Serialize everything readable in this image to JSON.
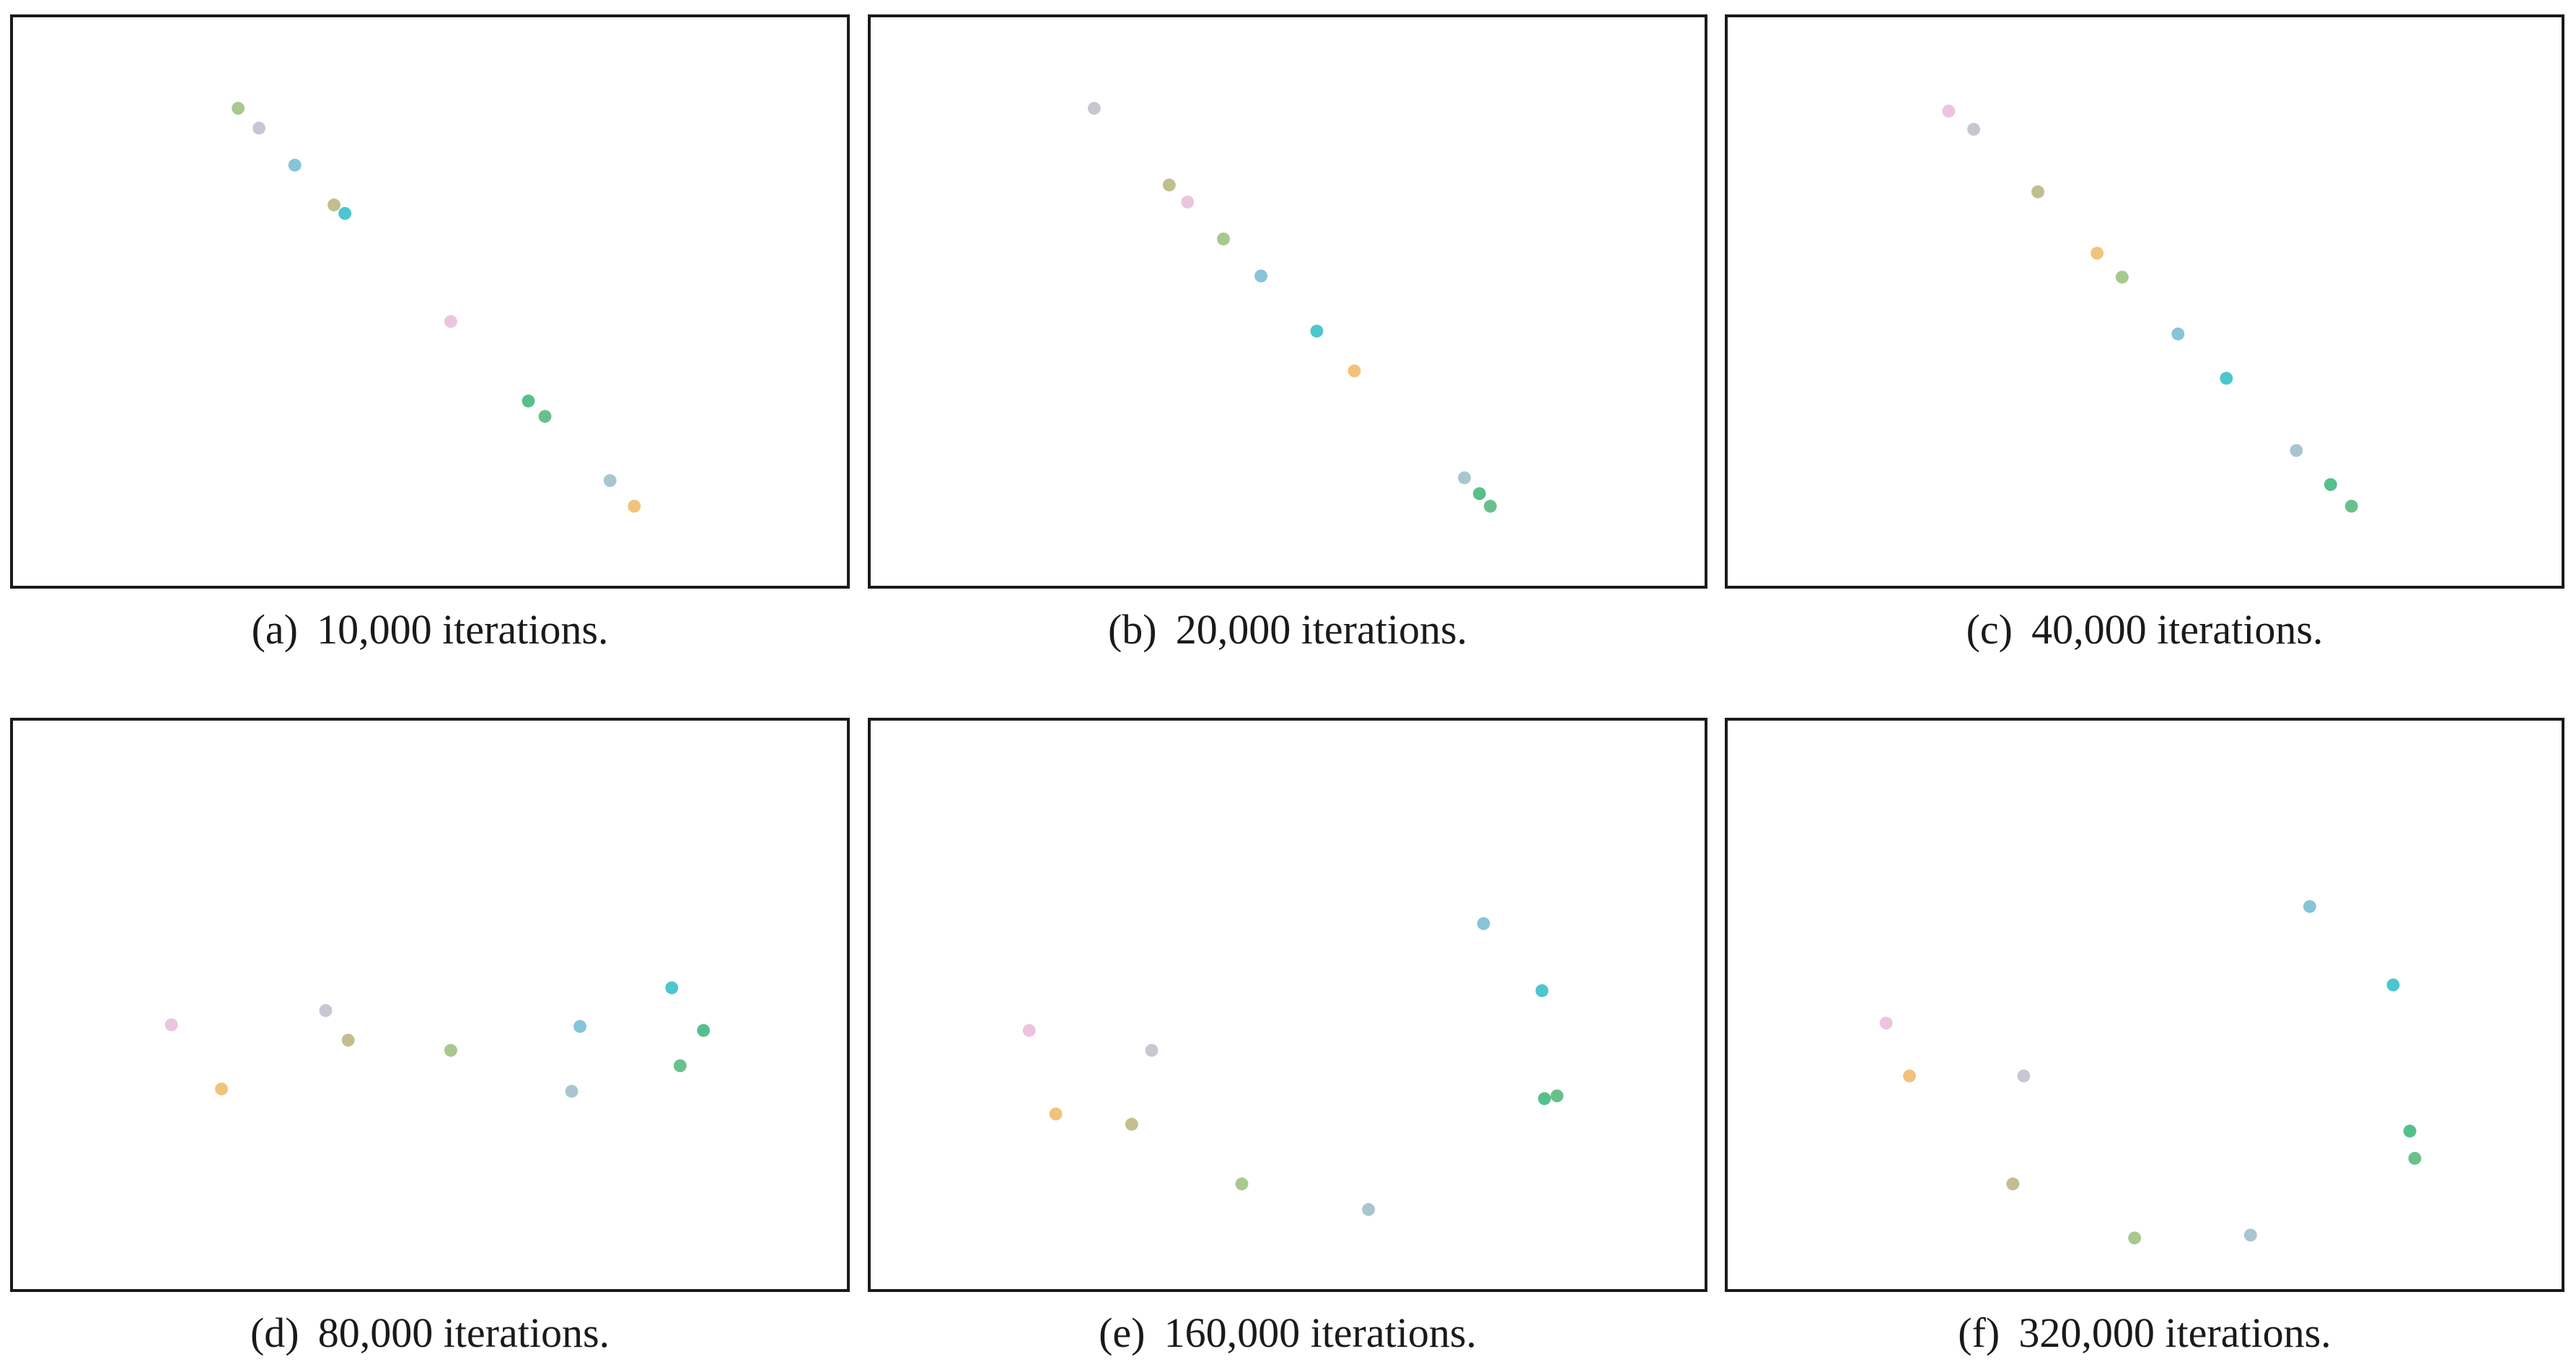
{
  "colors": {
    "pink": "#ecc4de",
    "lavender_gray": "#c9c6d3",
    "sky_blue": "#86c4d8",
    "olive": "#c3be8e",
    "teal": "#4cc6cf",
    "green": "#55c08b",
    "sea_green": "#6ac08c",
    "light_green": "#a8c88e",
    "light_blue_gray": "#a9c6d0",
    "orange": "#f2c27b"
  },
  "chart_data": [
    {
      "type": "scatter",
      "label": "(a)",
      "caption": "10,000 iterations.",
      "grid": false,
      "points": [
        {
          "x": 0.27,
          "y": 0.84,
          "color": "light_green"
        },
        {
          "x": 0.295,
          "y": 0.805,
          "color": "lavender_gray"
        },
        {
          "x": 0.338,
          "y": 0.74,
          "color": "sky_blue"
        },
        {
          "x": 0.385,
          "y": 0.67,
          "color": "olive"
        },
        {
          "x": 0.398,
          "y": 0.655,
          "color": "teal"
        },
        {
          "x": 0.525,
          "y": 0.465,
          "color": "pink"
        },
        {
          "x": 0.618,
          "y": 0.325,
          "color": "green"
        },
        {
          "x": 0.638,
          "y": 0.298,
          "color": "sea_green"
        },
        {
          "x": 0.716,
          "y": 0.185,
          "color": "light_blue_gray"
        },
        {
          "x": 0.745,
          "y": 0.14,
          "color": "orange"
        }
      ]
    },
    {
      "type": "scatter",
      "label": "(b)",
      "caption": "20,000 iterations.",
      "grid": false,
      "points": [
        {
          "x": 0.268,
          "y": 0.84,
          "color": "lavender_gray"
        },
        {
          "x": 0.358,
          "y": 0.705,
          "color": "olive"
        },
        {
          "x": 0.38,
          "y": 0.675,
          "color": "pink"
        },
        {
          "x": 0.423,
          "y": 0.61,
          "color": "light_green"
        },
        {
          "x": 0.468,
          "y": 0.545,
          "color": "sky_blue"
        },
        {
          "x": 0.535,
          "y": 0.448,
          "color": "teal"
        },
        {
          "x": 0.58,
          "y": 0.378,
          "color": "orange"
        },
        {
          "x": 0.712,
          "y": 0.19,
          "color": "light_blue_gray"
        },
        {
          "x": 0.73,
          "y": 0.162,
          "color": "green"
        },
        {
          "x": 0.743,
          "y": 0.14,
          "color": "sea_green"
        }
      ]
    },
    {
      "type": "scatter",
      "label": "(c)",
      "caption": "40,000 iterations.",
      "grid": false,
      "points": [
        {
          "x": 0.265,
          "y": 0.835,
          "color": "pink"
        },
        {
          "x": 0.295,
          "y": 0.803,
          "color": "lavender_gray"
        },
        {
          "x": 0.372,
          "y": 0.693,
          "color": "olive"
        },
        {
          "x": 0.443,
          "y": 0.585,
          "color": "orange"
        },
        {
          "x": 0.473,
          "y": 0.543,
          "color": "light_green"
        },
        {
          "x": 0.54,
          "y": 0.443,
          "color": "sky_blue"
        },
        {
          "x": 0.598,
          "y": 0.365,
          "color": "teal"
        },
        {
          "x": 0.682,
          "y": 0.238,
          "color": "light_blue_gray"
        },
        {
          "x": 0.723,
          "y": 0.178,
          "color": "green"
        },
        {
          "x": 0.748,
          "y": 0.14,
          "color": "sea_green"
        }
      ]
    },
    {
      "type": "scatter",
      "label": "(d)",
      "caption": "80,000 iterations.",
      "grid": false,
      "points": [
        {
          "x": 0.19,
          "y": 0.465,
          "color": "pink"
        },
        {
          "x": 0.25,
          "y": 0.352,
          "color": "orange"
        },
        {
          "x": 0.375,
          "y": 0.49,
          "color": "lavender_gray"
        },
        {
          "x": 0.402,
          "y": 0.438,
          "color": "olive"
        },
        {
          "x": 0.525,
          "y": 0.42,
          "color": "light_green"
        },
        {
          "x": 0.67,
          "y": 0.348,
          "color": "light_blue_gray"
        },
        {
          "x": 0.68,
          "y": 0.462,
          "color": "sky_blue"
        },
        {
          "x": 0.79,
          "y": 0.53,
          "color": "teal"
        },
        {
          "x": 0.8,
          "y": 0.393,
          "color": "sea_green"
        },
        {
          "x": 0.828,
          "y": 0.455,
          "color": "green"
        }
      ]
    },
    {
      "type": "scatter",
      "label": "(e)",
      "caption": "160,000 iterations.",
      "grid": false,
      "points": [
        {
          "x": 0.19,
          "y": 0.455,
          "color": "pink"
        },
        {
          "x": 0.337,
          "y": 0.42,
          "color": "lavender_gray"
        },
        {
          "x": 0.222,
          "y": 0.308,
          "color": "orange"
        },
        {
          "x": 0.313,
          "y": 0.29,
          "color": "olive"
        },
        {
          "x": 0.445,
          "y": 0.185,
          "color": "light_green"
        },
        {
          "x": 0.597,
          "y": 0.14,
          "color": "light_blue_gray"
        },
        {
          "x": 0.735,
          "y": 0.643,
          "color": "sky_blue"
        },
        {
          "x": 0.805,
          "y": 0.525,
          "color": "teal"
        },
        {
          "x": 0.808,
          "y": 0.335,
          "color": "green"
        },
        {
          "x": 0.823,
          "y": 0.34,
          "color": "sea_green"
        }
      ]
    },
    {
      "type": "scatter",
      "label": "(f)",
      "caption": "320,000 iterations.",
      "grid": false,
      "points": [
        {
          "x": 0.19,
          "y": 0.468,
          "color": "pink"
        },
        {
          "x": 0.218,
          "y": 0.375,
          "color": "orange"
        },
        {
          "x": 0.355,
          "y": 0.375,
          "color": "lavender_gray"
        },
        {
          "x": 0.342,
          "y": 0.185,
          "color": "olive"
        },
        {
          "x": 0.488,
          "y": 0.09,
          "color": "light_green"
        },
        {
          "x": 0.627,
          "y": 0.095,
          "color": "light_blue_gray"
        },
        {
          "x": 0.698,
          "y": 0.673,
          "color": "sky_blue"
        },
        {
          "x": 0.798,
          "y": 0.535,
          "color": "teal"
        },
        {
          "x": 0.818,
          "y": 0.278,
          "color": "green"
        },
        {
          "x": 0.824,
          "y": 0.23,
          "color": "sea_green"
        }
      ]
    }
  ]
}
